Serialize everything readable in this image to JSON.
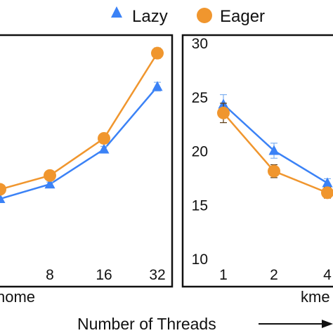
{
  "chart_data": {
    "type": "line",
    "legend": {
      "position": "top-right",
      "entries": [
        {
          "name": "Lazy",
          "color": "#3b82f6",
          "marker": "triangle"
        },
        {
          "name": "Eager",
          "color": "#f0962e",
          "marker": "circle"
        }
      ]
    },
    "xlabel": "Number of Threads",
    "panels": [
      {
        "name": "nome",
        "x": [
          2,
          8,
          16,
          32
        ],
        "xticks": [
          "8",
          "16",
          "32"
        ],
        "yticks": [],
        "ylim": [
          0,
          30
        ],
        "grid": false,
        "series": [
          {
            "name": "Lazy",
            "values": [
              8.2,
              10.2,
              15.0,
              23.6
            ],
            "errors": [
              0.2,
              0.3,
              0.4,
              0.6
            ]
          },
          {
            "name": "Eager",
            "values": [
              9.5,
              11.4,
              16.5,
              28.2
            ],
            "errors": [
              0.2,
              0.3,
              0.4,
              0.7
            ]
          }
        ]
      },
      {
        "name": "kme",
        "x": [
          1,
          2,
          4
        ],
        "xticks": [
          "1",
          "2",
          "4"
        ],
        "yticks": [
          "10",
          "15",
          "20",
          "25",
          "30"
        ],
        "ylim": [
          10,
          30
        ],
        "grid": false,
        "series": [
          {
            "name": "Lazy",
            "values": [
              24.3,
              20.0,
              17.0
            ],
            "errors": [
              0.9,
              0.7,
              0.4
            ]
          },
          {
            "name": "Eager",
            "values": [
              23.5,
              18.1,
              16.1
            ],
            "errors": [
              0.9,
              0.6,
              0.5
            ]
          }
        ]
      }
    ]
  }
}
